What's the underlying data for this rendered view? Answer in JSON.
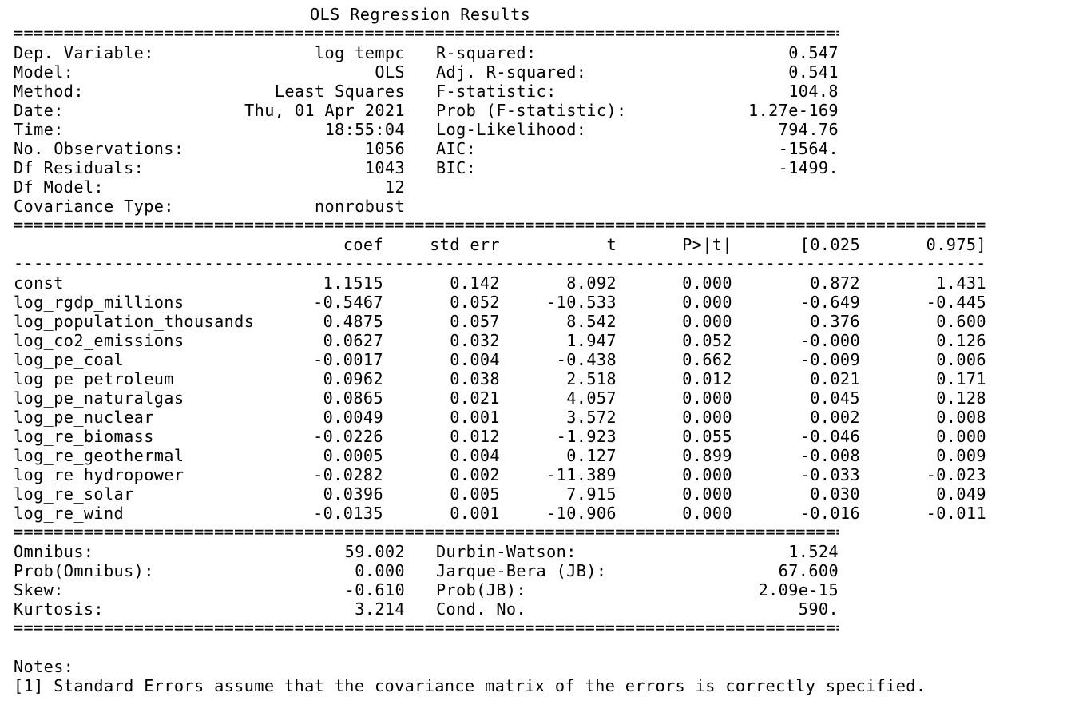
{
  "title": "OLS Regression Results",
  "rule_double": "==================================================================================================================================================",
  "rule_single": "--------------------------------------------------------------------------------------------------------------------------------------------------",
  "summary": [
    {
      "l1": "Dep. Variable:",
      "v1": "log_tempc",
      "l2": "R-squared:",
      "v2": "0.547"
    },
    {
      "l1": "Model:",
      "v1": "OLS",
      "l2": "Adj. R-squared:",
      "v2": "0.541"
    },
    {
      "l1": "Method:",
      "v1": "Least Squares",
      "l2": "F-statistic:",
      "v2": "104.8"
    },
    {
      "l1": "Date:",
      "v1": "Thu, 01 Apr 2021",
      "l2": "Prob (F-statistic):",
      "v2": "1.27e-169"
    },
    {
      "l1": "Time:",
      "v1": "18:55:04",
      "l2": "Log-Likelihood:",
      "v2": "794.76"
    },
    {
      "l1": "No. Observations:",
      "v1": "1056",
      "l2": "AIC:",
      "v2": "-1564."
    },
    {
      "l1": "Df Residuals:",
      "v1": "1043",
      "l2": "BIC:",
      "v2": "-1499."
    },
    {
      "l1": "Df Model:",
      "v1": "12",
      "l2": "",
      "v2": ""
    },
    {
      "l1": "Covariance Type:",
      "v1": "nonrobust",
      "l2": "",
      "v2": ""
    }
  ],
  "coef_headers": [
    "coef",
    "std err",
    "t",
    "P>|t|",
    "[0.025",
    "0.975]"
  ],
  "coef_rows": [
    {
      "name": "const",
      "coef": "1.1515",
      "se": "0.142",
      "t": "8.092",
      "p": "0.000",
      "lo": "0.872",
      "hi": "1.431"
    },
    {
      "name": "log_rgdp_millions",
      "coef": "-0.5467",
      "se": "0.052",
      "t": "-10.533",
      "p": "0.000",
      "lo": "-0.649",
      "hi": "-0.445"
    },
    {
      "name": "log_population_thousands",
      "coef": "0.4875",
      "se": "0.057",
      "t": "8.542",
      "p": "0.000",
      "lo": "0.376",
      "hi": "0.600"
    },
    {
      "name": "log_co2_emissions",
      "coef": "0.0627",
      "se": "0.032",
      "t": "1.947",
      "p": "0.052",
      "lo": "-0.000",
      "hi": "0.126"
    },
    {
      "name": "log_pe_coal",
      "coef": "-0.0017",
      "se": "0.004",
      "t": "-0.438",
      "p": "0.662",
      "lo": "-0.009",
      "hi": "0.006"
    },
    {
      "name": "log_pe_petroleum",
      "coef": "0.0962",
      "se": "0.038",
      "t": "2.518",
      "p": "0.012",
      "lo": "0.021",
      "hi": "0.171"
    },
    {
      "name": "log_pe_naturalgas",
      "coef": "0.0865",
      "se": "0.021",
      "t": "4.057",
      "p": "0.000",
      "lo": "0.045",
      "hi": "0.128"
    },
    {
      "name": "log_pe_nuclear",
      "coef": "0.0049",
      "se": "0.001",
      "t": "3.572",
      "p": "0.000",
      "lo": "0.002",
      "hi": "0.008"
    },
    {
      "name": "log_re_biomass",
      "coef": "-0.0226",
      "se": "0.012",
      "t": "-1.923",
      "p": "0.055",
      "lo": "-0.046",
      "hi": "0.000"
    },
    {
      "name": "log_re_geothermal",
      "coef": "0.0005",
      "se": "0.004",
      "t": "0.127",
      "p": "0.899",
      "lo": "-0.008",
      "hi": "0.009"
    },
    {
      "name": "log_re_hydropower",
      "coef": "-0.0282",
      "se": "0.002",
      "t": "-11.389",
      "p": "0.000",
      "lo": "-0.033",
      "hi": "-0.023"
    },
    {
      "name": "log_re_solar",
      "coef": "0.0396",
      "se": "0.005",
      "t": "7.915",
      "p": "0.000",
      "lo": "0.030",
      "hi": "0.049"
    },
    {
      "name": "log_re_wind",
      "coef": "-0.0135",
      "se": "0.001",
      "t": "-10.906",
      "p": "0.000",
      "lo": "-0.016",
      "hi": "-0.011"
    }
  ],
  "diagnostics": [
    {
      "l1": "Omnibus:",
      "v1": "59.002",
      "l2": "Durbin-Watson:",
      "v2": "1.524"
    },
    {
      "l1": "Prob(Omnibus):",
      "v1": "0.000",
      "l2": "Jarque-Bera (JB):",
      "v2": "67.600"
    },
    {
      "l1": "Skew:",
      "v1": "-0.610",
      "l2": "Prob(JB):",
      "v2": "2.09e-15"
    },
    {
      "l1": "Kurtosis:",
      "v1": "3.214",
      "l2": "Cond. No.",
      "v2": "590."
    }
  ],
  "notes_title": "Notes:",
  "notes": [
    "[1] Standard Errors assume that the covariance matrix of the errors is correctly specified."
  ]
}
